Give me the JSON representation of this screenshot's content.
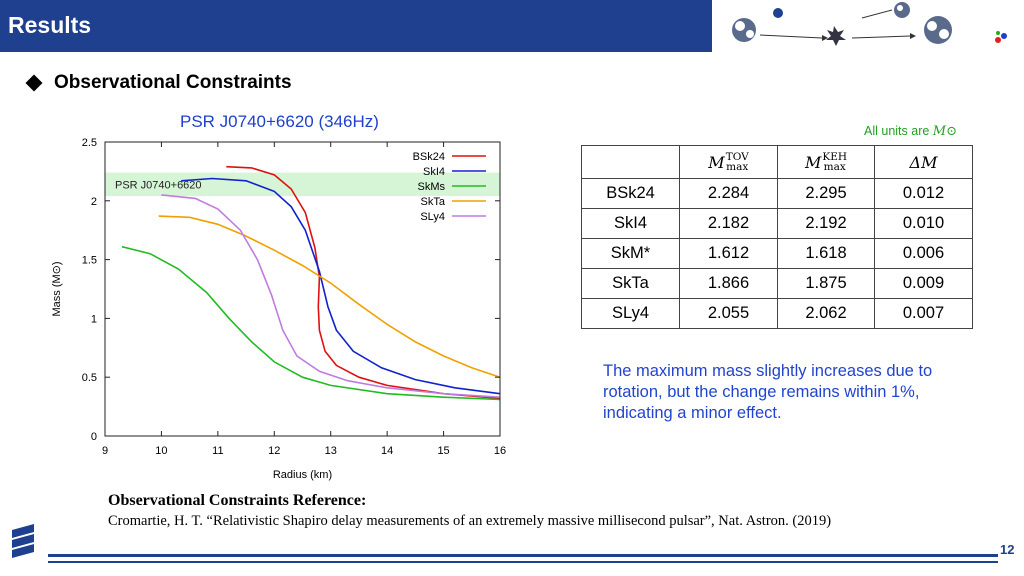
{
  "header": {
    "title": "Results"
  },
  "section": {
    "heading": "Observational Constraints"
  },
  "chart_data": {
    "type": "line",
    "title": "PSR J0740+6620 (346Hz)",
    "xlabel": "Radius (km)",
    "ylabel": "Mass (M⊙)",
    "xlim": [
      9,
      16
    ],
    "ylim": [
      0,
      2.5
    ],
    "xticks": [
      9,
      10,
      11,
      12,
      13,
      14,
      15,
      16
    ],
    "yticks": [
      0,
      0.5,
      1,
      1.5,
      2,
      2.5
    ],
    "ytick_labels": [
      "0",
      "0.5",
      "1",
      "1.5",
      "2",
      "2.5"
    ],
    "grid": false,
    "legend_position": "top-right",
    "band": {
      "label": "PSR J0740+6620",
      "ymin": 2.04,
      "ymax": 2.24,
      "color": "#d6f5d6"
    },
    "series": [
      {
        "name": "BSk24",
        "color": "#dd1111",
        "points": [
          [
            11.15,
            2.29
          ],
          [
            11.6,
            2.28
          ],
          [
            12.0,
            2.22
          ],
          [
            12.3,
            2.1
          ],
          [
            12.55,
            1.9
          ],
          [
            12.72,
            1.6
          ],
          [
            12.8,
            1.35
          ],
          [
            12.78,
            1.1
          ],
          [
            12.8,
            0.9
          ],
          [
            12.9,
            0.72
          ],
          [
            13.1,
            0.6
          ],
          [
            13.5,
            0.5
          ],
          [
            14.0,
            0.43
          ],
          [
            15.0,
            0.36
          ],
          [
            16.0,
            0.32
          ]
        ]
      },
      {
        "name": "SkI4",
        "color": "#1122cc",
        "points": [
          [
            10.35,
            2.17
          ],
          [
            10.9,
            2.19
          ],
          [
            11.5,
            2.17
          ],
          [
            12.0,
            2.08
          ],
          [
            12.3,
            1.95
          ],
          [
            12.55,
            1.75
          ],
          [
            12.8,
            1.4
          ],
          [
            12.95,
            1.1
          ],
          [
            13.1,
            0.9
          ],
          [
            13.4,
            0.72
          ],
          [
            13.9,
            0.58
          ],
          [
            14.5,
            0.48
          ],
          [
            15.2,
            0.41
          ],
          [
            16.0,
            0.36
          ]
        ]
      },
      {
        "name": "SkMs",
        "color": "#22bb22",
        "points": [
          [
            9.3,
            1.61
          ],
          [
            9.8,
            1.55
          ],
          [
            10.3,
            1.42
          ],
          [
            10.8,
            1.22
          ],
          [
            11.2,
            1.0
          ],
          [
            11.6,
            0.8
          ],
          [
            12.0,
            0.63
          ],
          [
            12.5,
            0.5
          ],
          [
            13.0,
            0.43
          ],
          [
            14.0,
            0.36
          ],
          [
            15.0,
            0.33
          ],
          [
            16.0,
            0.31
          ]
        ]
      },
      {
        "name": "SkTa",
        "color": "#f0a000",
        "points": [
          [
            9.95,
            1.87
          ],
          [
            10.5,
            1.86
          ],
          [
            11.0,
            1.8
          ],
          [
            11.5,
            1.7
          ],
          [
            12.0,
            1.58
          ],
          [
            12.5,
            1.45
          ],
          [
            13.0,
            1.3
          ],
          [
            13.5,
            1.12
          ],
          [
            14.0,
            0.95
          ],
          [
            14.5,
            0.8
          ],
          [
            15.0,
            0.68
          ],
          [
            15.5,
            0.58
          ],
          [
            16.0,
            0.5
          ]
        ]
      },
      {
        "name": "SLy4",
        "color": "#c07be0",
        "points": [
          [
            10.0,
            2.05
          ],
          [
            10.6,
            2.02
          ],
          [
            11.0,
            1.93
          ],
          [
            11.4,
            1.75
          ],
          [
            11.7,
            1.5
          ],
          [
            11.95,
            1.2
          ],
          [
            12.15,
            0.9
          ],
          [
            12.4,
            0.68
          ],
          [
            12.8,
            0.55
          ],
          [
            13.3,
            0.47
          ],
          [
            14.0,
            0.41
          ],
          [
            15.0,
            0.36
          ],
          [
            16.0,
            0.33
          ]
        ]
      }
    ]
  },
  "units_note": {
    "text": "All units are",
    "symbol": "M⊙"
  },
  "table": {
    "headers": [
      {
        "main": "M",
        "sup": "TOV",
        "sub": "max"
      },
      {
        "main": "M",
        "sup": "KEH",
        "sub": "max"
      },
      {
        "main": "ΔM"
      }
    ],
    "rows": [
      [
        "BSk24",
        "2.284",
        "2.295",
        "0.012"
      ],
      [
        "SkI4",
        "2.182",
        "2.192",
        "0.010"
      ],
      [
        "SkM*",
        "1.612",
        "1.618",
        "0.006"
      ],
      [
        "SkTa",
        "1.866",
        "1.875",
        "0.009"
      ],
      [
        "SLy4",
        "2.055",
        "2.062",
        "0.007"
      ]
    ]
  },
  "conclusion": "The maximum mass slightly increases due to rotation, but the change remains within 1%, indicating a minor effect.",
  "reference": {
    "title": "Observational Constraints Reference:",
    "text": "Cromartie, H. T. “Relativistic Shapiro delay measurements of an extremely massive millisecond pulsar”, Nat. Astron. (2019)"
  },
  "footer": {
    "page_number": "12"
  }
}
